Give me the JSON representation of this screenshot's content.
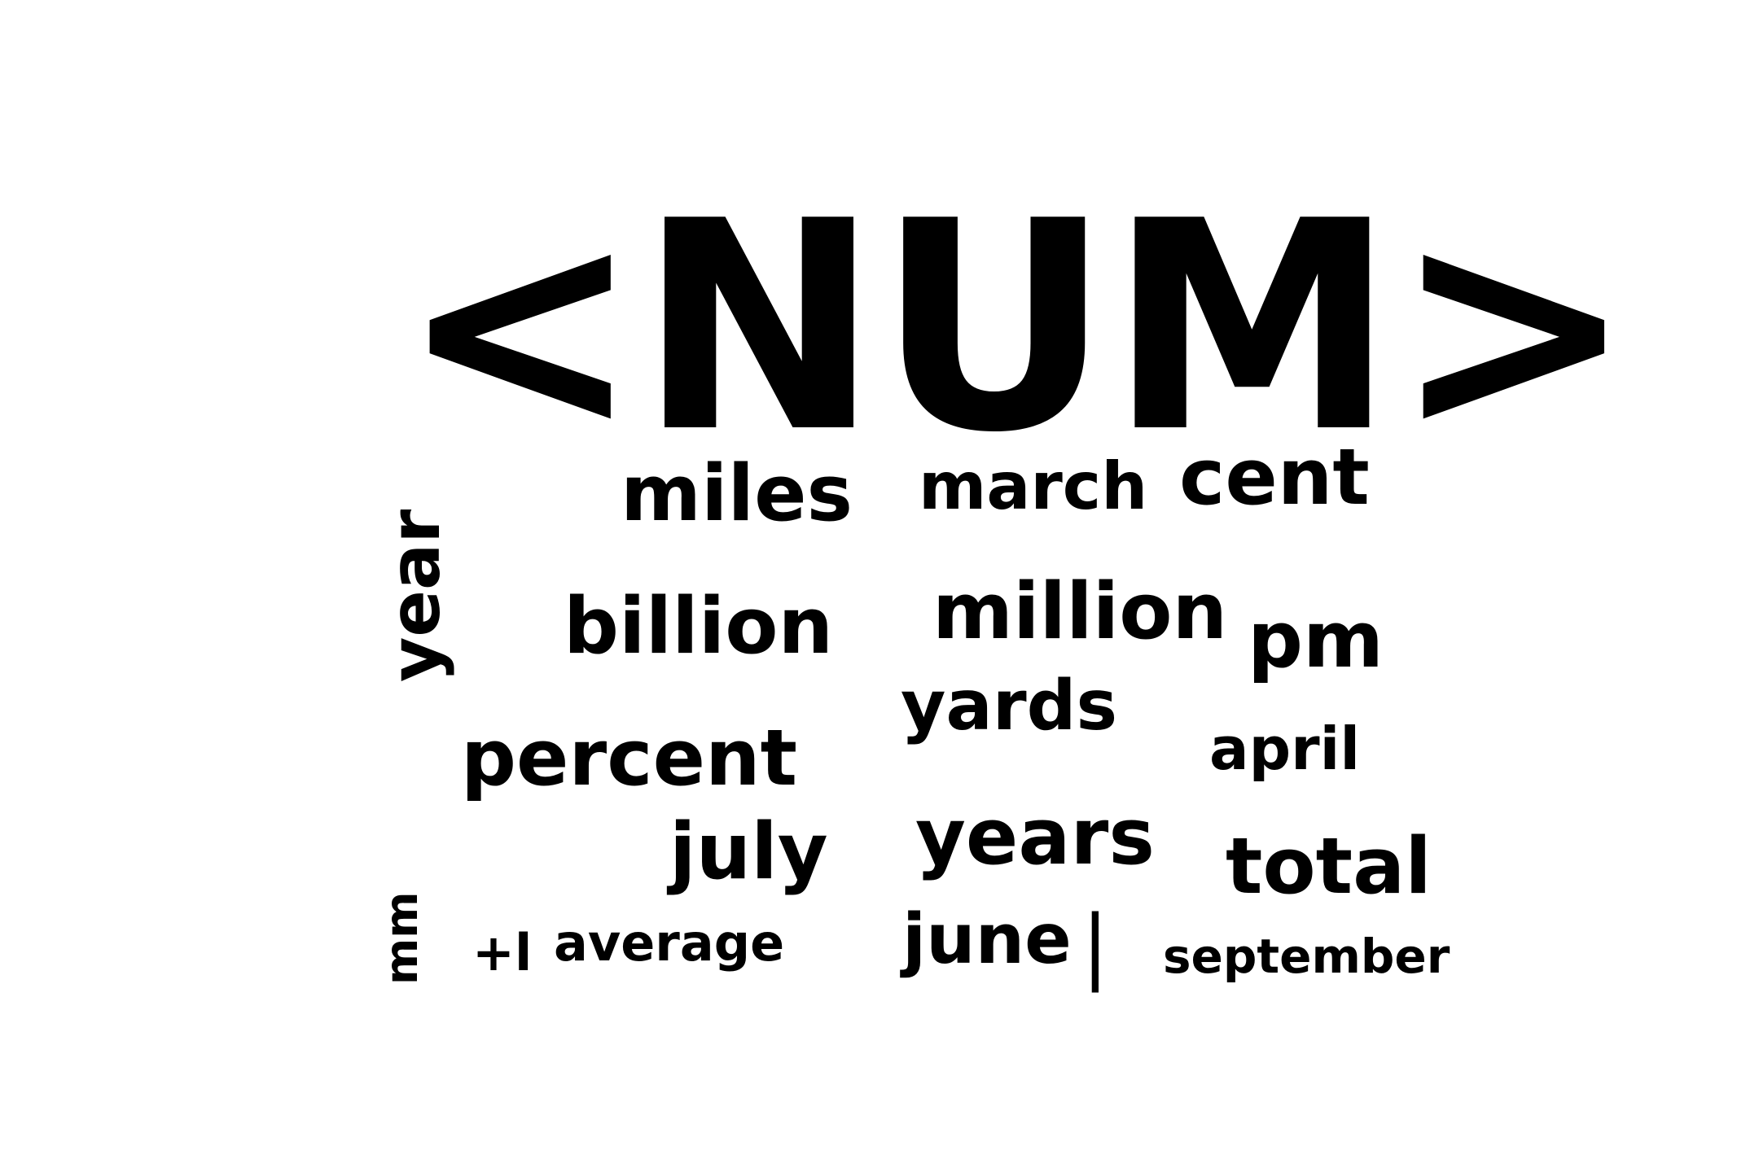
{
  "cloud": {
    "headline": "<NUM>",
    "words": {
      "miles": "miles",
      "march": "march",
      "cent": "cent",
      "year": "year",
      "billion": "billion",
      "million": "million",
      "pm": "pm",
      "yards": "yards",
      "percent": "percent",
      "april": "april",
      "july": "july",
      "years": "years",
      "total": "total",
      "mm": "mm",
      "plusminus": "+l",
      "average": "average",
      "june": "june",
      "bar": "|",
      "september": "september"
    },
    "text_color": "#000000",
    "background_color": "#ffffff"
  }
}
